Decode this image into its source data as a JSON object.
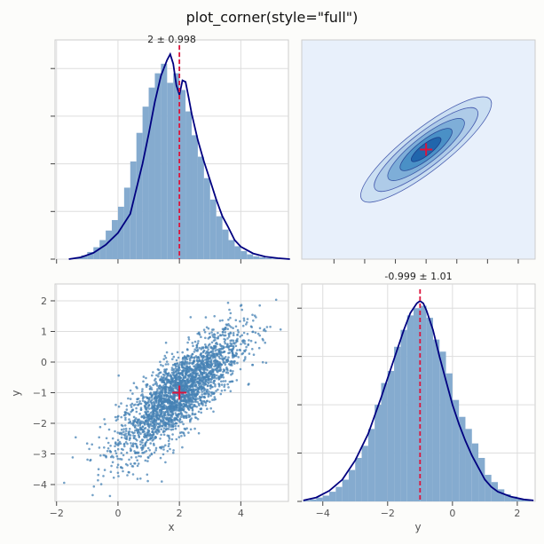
{
  "title": "plot_corner(style=\"full\")",
  "colors": {
    "hist": "#85abcf",
    "kde": "#000080",
    "marker": "#dc143c",
    "scatter": "#4682b4",
    "contour_bg": "#e8f0fb",
    "grid": "#dddddd"
  },
  "chart_data": [
    {
      "type": "bar",
      "panel": "x marginal",
      "title": "2 ± 0.998",
      "x_range": [
        -2.05,
        5.55
      ],
      "xticks": [
        -2,
        0,
        2,
        4
      ],
      "bin_edges": [
        -1.6,
        -1.4,
        -1.2,
        -1.0,
        -0.8,
        -0.6,
        -0.4,
        -0.2,
        0.0,
        0.2,
        0.4,
        0.6,
        0.8,
        1.0,
        1.2,
        1.4,
        1.6,
        1.8,
        2.0,
        2.2,
        2.4,
        2.6,
        2.8,
        3.0,
        3.2,
        3.4,
        3.6,
        3.8,
        4.0,
        4.2,
        4.4,
        4.6,
        4.8,
        5.0,
        5.2,
        5.4
      ],
      "density": [
        0.002,
        0.004,
        0.008,
        0.015,
        0.025,
        0.04,
        0.06,
        0.082,
        0.11,
        0.15,
        0.205,
        0.265,
        0.32,
        0.36,
        0.39,
        0.41,
        0.37,
        0.39,
        0.355,
        0.31,
        0.26,
        0.215,
        0.17,
        0.125,
        0.09,
        0.062,
        0.04,
        0.027,
        0.017,
        0.01,
        0.006,
        0.004,
        0.002,
        0.001,
        0.001
      ],
      "kde_x": [
        -1.6,
        -1.2,
        -0.8,
        -0.4,
        0.0,
        0.4,
        0.8,
        1.0,
        1.2,
        1.4,
        1.6,
        1.7,
        1.8,
        1.9,
        2.0,
        2.1,
        2.2,
        2.3,
        2.4,
        2.6,
        2.8,
        3.0,
        3.2,
        3.4,
        3.6,
        3.8,
        4.0,
        4.4,
        4.8,
        5.2,
        5.6
      ],
      "kde_y": [
        0.0,
        0.004,
        0.013,
        0.03,
        0.055,
        0.095,
        0.2,
        0.262,
        0.33,
        0.385,
        0.418,
        0.43,
        0.41,
        0.365,
        0.345,
        0.375,
        0.372,
        0.34,
        0.305,
        0.25,
        0.205,
        0.165,
        0.125,
        0.09,
        0.066,
        0.04,
        0.026,
        0.012,
        0.005,
        0.002,
        0.0
      ],
      "y_range": [
        0,
        0.46
      ],
      "marker_x": 2.0
    },
    {
      "type": "heatmap",
      "panel": "x-y contour",
      "x_range": [
        -2.05,
        5.55
      ],
      "y_range": [
        -4.55,
        2.55
      ],
      "center": [
        2.0,
        -1.0
      ],
      "levels": [
        {
          "a": 2.65,
          "b": 0.68,
          "fill": "#cbdff2",
          "stroke": "#4a5fb0"
        },
        {
          "a": 2.1,
          "b": 0.55,
          "fill": "#aecbe8",
          "stroke": "#4a5fb0"
        },
        {
          "a": 1.55,
          "b": 0.42,
          "fill": "#7eaed8",
          "stroke": "#3b5aa8"
        },
        {
          "a": 1.05,
          "b": 0.3,
          "fill": "#4a90c6",
          "stroke": "#2a4a98"
        },
        {
          "a": 0.6,
          "b": 0.18,
          "fill": "#2166ac",
          "stroke": "#1b3c8a"
        }
      ],
      "marker": [
        2.0,
        -1.0
      ]
    },
    {
      "type": "scatter",
      "panel": "x vs y",
      "xlabel": "x",
      "ylabel": "y",
      "x_range": [
        -2.05,
        5.55
      ],
      "y_range": [
        -4.55,
        2.55
      ],
      "xticks": [
        -2,
        0,
        2,
        4
      ],
      "yticks": [
        -4,
        -3,
        -2,
        -1,
        0,
        1,
        2
      ],
      "n_points": 2600,
      "mean": [
        2.0,
        -1.0
      ],
      "std": [
        0.998,
        1.01
      ],
      "corr": 0.8,
      "marker": [
        2.0,
        -1.0
      ]
    },
    {
      "type": "bar",
      "panel": "y marginal",
      "title": "-0.999 ± 1.01",
      "xlabel": "y",
      "x_range": [
        -4.65,
        2.55
      ],
      "xticks": [
        -4,
        -2,
        0,
        2
      ],
      "bin_edges": [
        -4.6,
        -4.4,
        -4.2,
        -4.0,
        -3.8,
        -3.6,
        -3.4,
        -3.2,
        -3.0,
        -2.8,
        -2.6,
        -2.4,
        -2.2,
        -2.0,
        -1.8,
        -1.6,
        -1.4,
        -1.2,
        -1.0,
        -0.8,
        -0.6,
        -0.4,
        -0.2,
        0.0,
        0.2,
        0.4,
        0.6,
        0.8,
        1.0,
        1.2,
        1.4,
        1.6,
        1.8,
        2.0,
        2.2,
        2.4
      ],
      "density": [
        0.002,
        0.004,
        0.008,
        0.012,
        0.02,
        0.03,
        0.045,
        0.065,
        0.09,
        0.115,
        0.15,
        0.2,
        0.245,
        0.27,
        0.32,
        0.355,
        0.385,
        0.4,
        0.405,
        0.38,
        0.335,
        0.31,
        0.265,
        0.21,
        0.175,
        0.15,
        0.12,
        0.09,
        0.055,
        0.04,
        0.025,
        0.015,
        0.01,
        0.005,
        0.002
      ],
      "kde_x": [
        -4.6,
        -4.2,
        -3.8,
        -3.4,
        -3.0,
        -2.6,
        -2.2,
        -1.8,
        -1.5,
        -1.3,
        -1.1,
        -1.0,
        -0.9,
        -0.8,
        -0.6,
        -0.4,
        -0.2,
        0.0,
        0.2,
        0.4,
        0.6,
        0.8,
        1.0,
        1.2,
        1.4,
        1.8,
        2.2,
        2.5
      ],
      "kde_y": [
        0.002,
        0.008,
        0.022,
        0.045,
        0.085,
        0.14,
        0.215,
        0.295,
        0.355,
        0.39,
        0.41,
        0.415,
        0.41,
        0.395,
        0.355,
        0.3,
        0.25,
        0.2,
        0.16,
        0.125,
        0.095,
        0.07,
        0.045,
        0.03,
        0.02,
        0.01,
        0.004,
        0.002
      ],
      "y_range": [
        0,
        0.45
      ],
      "marker_x": -1.0
    }
  ]
}
